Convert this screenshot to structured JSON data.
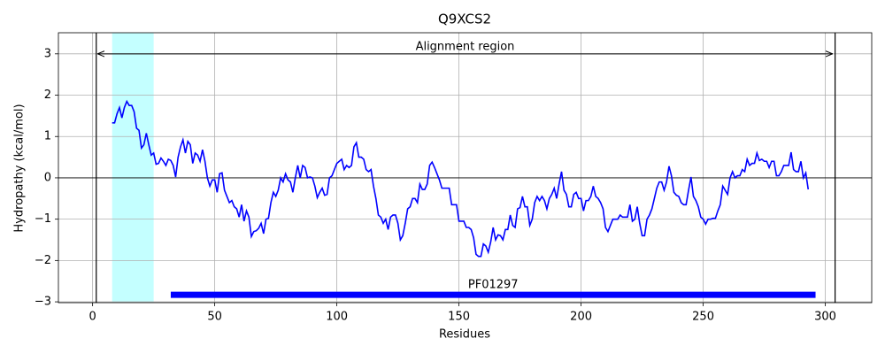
{
  "chart_data": {
    "type": "line",
    "title": "Q9XCS2",
    "xlabel": "Residues",
    "ylabel": "Hydropathy (kcal/mol)",
    "x": [
      8,
      9,
      10,
      11,
      12,
      13,
      14,
      15,
      16,
      17,
      18,
      19,
      20,
      21,
      22,
      23,
      24,
      25,
      26,
      27,
      28,
      29,
      30,
      31,
      32,
      33,
      34,
      35,
      36,
      37,
      38,
      39,
      40,
      41,
      42,
      43,
      44,
      45,
      46,
      47,
      48,
      49,
      50,
      51,
      52,
      53,
      54,
      55,
      56,
      57,
      58,
      59,
      60,
      61,
      62,
      63,
      64,
      65,
      66,
      67,
      68,
      69,
      70,
      71,
      72,
      73,
      74,
      75,
      76,
      77,
      78,
      79,
      80,
      81,
      82,
      83,
      84,
      85,
      86,
      87,
      88,
      89,
      90,
      91,
      92,
      93,
      94,
      95,
      96,
      97,
      98,
      99,
      100,
      101,
      102,
      103,
      104,
      105,
      106,
      107,
      108,
      109,
      110,
      111,
      112,
      113,
      114,
      115,
      116,
      117,
      118,
      119,
      120,
      121,
      122,
      123,
      124,
      125,
      126,
      127,
      128,
      129,
      130,
      131,
      132,
      133,
      134,
      135,
      136,
      137,
      138,
      139,
      140,
      141,
      142,
      143,
      144,
      145,
      146,
      147,
      148,
      149,
      150,
      151,
      152,
      153,
      154,
      155,
      156,
      157,
      158,
      159,
      160,
      161,
      162,
      163,
      164,
      165,
      166,
      167,
      168,
      169,
      170,
      171,
      172,
      173,
      174,
      175,
      176,
      177,
      178,
      179,
      180,
      181,
      182,
      183,
      184,
      185,
      186,
      187,
      188,
      189,
      190,
      191,
      192,
      193,
      194,
      195,
      196,
      197,
      198,
      199,
      200,
      201,
      202,
      203,
      204,
      205,
      206,
      207,
      208,
      209,
      210,
      211,
      212,
      213,
      214,
      215,
      216,
      217,
      218,
      219,
      220,
      221,
      222,
      223,
      224,
      225,
      226,
      227,
      228,
      229,
      230,
      231,
      232,
      233,
      234,
      235,
      236,
      237,
      238,
      239,
      240,
      241,
      242,
      243,
      244,
      245,
      246,
      247,
      248,
      249,
      250,
      251,
      252,
      253,
      254,
      255,
      256,
      257,
      258,
      259,
      260,
      261,
      262,
      263,
      264,
      265,
      266,
      267,
      268,
      269,
      270,
      271,
      272,
      273,
      274,
      275,
      276,
      277,
      278,
      279,
      280,
      281,
      282,
      283,
      284,
      285,
      286,
      287,
      288,
      289,
      290,
      291,
      292,
      293
    ],
    "values": [
      1.33,
      1.33,
      1.55,
      1.7,
      1.45,
      1.7,
      1.85,
      1.75,
      1.75,
      1.6,
      1.2,
      1.15,
      0.72,
      0.8,
      1.08,
      0.8,
      0.55,
      0.6,
      0.33,
      0.35,
      0.48,
      0.4,
      0.3,
      0.45,
      0.42,
      0.3,
      0.02,
      0.5,
      0.75,
      0.92,
      0.6,
      0.88,
      0.8,
      0.35,
      0.6,
      0.55,
      0.4,
      0.68,
      0.4,
      0.0,
      -0.2,
      -0.05,
      -0.05,
      -0.35,
      0.1,
      0.12,
      -0.3,
      -0.45,
      -0.6,
      -0.55,
      -0.7,
      -0.75,
      -0.95,
      -0.65,
      -1.05,
      -0.8,
      -0.95,
      -1.42,
      -1.3,
      -1.28,
      -1.22,
      -1.1,
      -1.35,
      -1.0,
      -0.98,
      -0.6,
      -0.35,
      -0.45,
      -0.3,
      0.0,
      -0.1,
      0.1,
      -0.05,
      -0.1,
      -0.35,
      0.0,
      0.3,
      0.0,
      0.3,
      0.25,
      0.0,
      0.02,
      0.0,
      -0.2,
      -0.48,
      -0.35,
      -0.25,
      -0.42,
      -0.4,
      0.0,
      0.05,
      0.2,
      0.35,
      0.4,
      0.45,
      0.2,
      0.3,
      0.25,
      0.3,
      0.75,
      0.85,
      0.5,
      0.5,
      0.45,
      0.2,
      0.15,
      0.2,
      -0.2,
      -0.5,
      -0.9,
      -0.95,
      -1.1,
      -1.0,
      -1.25,
      -0.95,
      -0.9,
      -0.9,
      -1.1,
      -1.5,
      -1.4,
      -1.1,
      -0.75,
      -0.7,
      -0.5,
      -0.5,
      -0.6,
      -0.15,
      -0.28,
      -0.28,
      -0.15,
      0.3,
      0.38,
      0.25,
      0.1,
      -0.05,
      -0.25,
      -0.25,
      -0.25,
      -0.25,
      -0.65,
      -0.65,
      -0.65,
      -1.05,
      -1.05,
      -1.05,
      -1.2,
      -1.2,
      -1.25,
      -1.45,
      -1.85,
      -1.9,
      -1.9,
      -1.6,
      -1.65,
      -1.8,
      -1.55,
      -1.2,
      -1.5,
      -1.38,
      -1.4,
      -1.5,
      -1.25,
      -1.25,
      -0.9,
      -1.15,
      -1.2,
      -0.75,
      -0.72,
      -0.45,
      -0.7,
      -0.7,
      -1.15,
      -1.0,
      -0.6,
      -0.45,
      -0.55,
      -0.45,
      -0.55,
      -0.75,
      -0.5,
      -0.4,
      -0.25,
      -0.5,
      -0.15,
      0.15,
      -0.3,
      -0.4,
      -0.7,
      -0.7,
      -0.4,
      -0.35,
      -0.5,
      -0.5,
      -0.8,
      -0.55,
      -0.55,
      -0.45,
      -0.2,
      -0.45,
      -0.5,
      -0.6,
      -0.75,
      -1.2,
      -1.3,
      -1.15,
      -1.0,
      -1.0,
      -1.0,
      -0.9,
      -0.95,
      -0.95,
      -0.95,
      -0.65,
      -1.05,
      -1.0,
      -0.7,
      -1.1,
      -1.4,
      -1.4,
      -1.0,
      -0.9,
      -0.75,
      -0.5,
      -0.25,
      -0.1,
      -0.1,
      -0.3,
      -0.1,
      0.28,
      0.05,
      -0.35,
      -0.42,
      -0.45,
      -0.6,
      -0.65,
      -0.65,
      -0.3,
      0.02,
      -0.45,
      -0.55,
      -0.7,
      -0.95,
      -1.0,
      -1.12,
      -1.0,
      -1.0,
      -0.98,
      -0.98,
      -0.8,
      -0.65,
      -0.2,
      -0.3,
      -0.4,
      0.0,
      0.15,
      0.0,
      0.05,
      0.05,
      0.2,
      0.15,
      0.45,
      0.3,
      0.35,
      0.35,
      0.6,
      0.42,
      0.45,
      0.4,
      0.4,
      0.25,
      0.4,
      0.4,
      0.05,
      0.05,
      0.15,
      0.3,
      0.3,
      0.3,
      0.62,
      0.2,
      0.15,
      0.15,
      0.4,
      0.0,
      0.12,
      -0.28
    ],
    "color": "#0000ff",
    "xlim": [
      -14,
      319
    ],
    "ylim": [
      -3.02,
      3.51
    ],
    "xticks": [
      0,
      50,
      100,
      150,
      200,
      250,
      300
    ],
    "yticks": [
      {
        "value": -3,
        "label": "−3"
      },
      {
        "value": -2,
        "label": "−2"
      },
      {
        "value": -1,
        "label": "−1"
      },
      0,
      1,
      2,
      3
    ],
    "grid": true,
    "hline": 0,
    "vlines": [
      1.5,
      304
    ],
    "span": {
      "range": [
        8,
        25
      ],
      "color": "#c4ffff"
    },
    "arrow": {
      "label": "Alignment region",
      "x": [
        2,
        303
      ],
      "y": 3
    },
    "domain": {
      "label": "PF01297",
      "start": 32,
      "end": 296,
      "y": -2.83,
      "color": "#0000ff"
    }
  }
}
